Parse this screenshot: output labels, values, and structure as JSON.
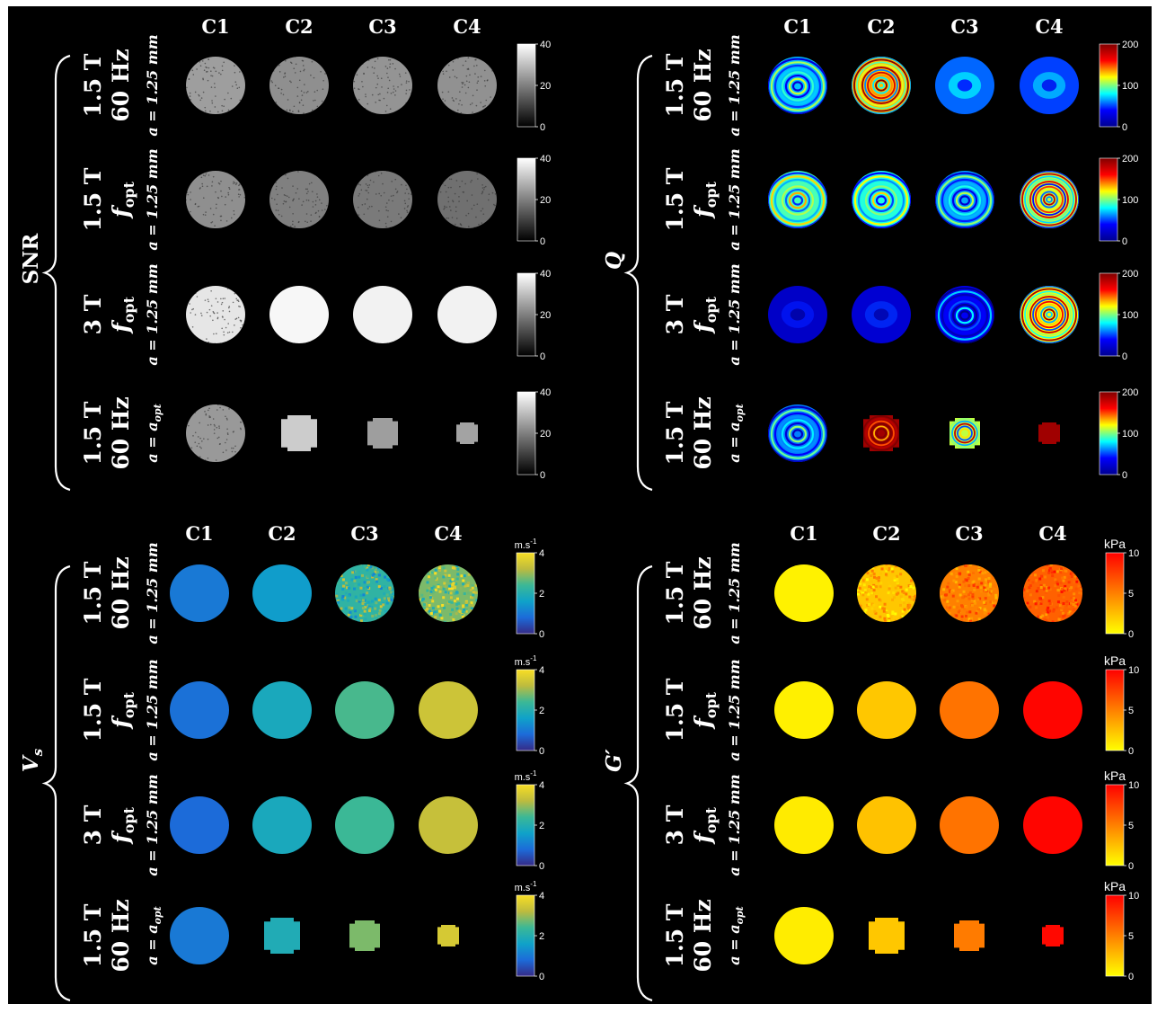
{
  "colormaps": {
    "gray": [
      "#000000",
      "#ffffff"
    ],
    "jet": [
      "#00008f",
      "#0000ff",
      "#00ffff",
      "#ffff00",
      "#ff0000",
      "#800000"
    ],
    "parula": [
      "#352a87",
      "#1c6bd9",
      "#0fa2c9",
      "#3bb896",
      "#bdbb3e",
      "#f8de24"
    ],
    "autumn_rev": [
      "#ffff00",
      "#ff8000",
      "#ff0000"
    ]
  },
  "panels": [
    {
      "id": "snr",
      "title": "SNR",
      "columns": [
        "C1",
        "C2",
        "C3",
        "C4"
      ],
      "rows": [
        {
          "field": "1.5 T",
          "freq": "60 Hz",
          "res": "a = 1.25 mm"
        },
        {
          "field": "1.5 T",
          "freq": "f",
          "freq_sub": "opt",
          "res": "a = 1.25 mm"
        },
        {
          "field": "3 T",
          "freq": "f",
          "freq_sub": "opt",
          "res": "a = 1.25 mm"
        },
        {
          "field": "1.5 T",
          "freq": "60 Hz",
          "res": "a = a",
          "res_sub": "opt"
        }
      ],
      "colorbar": {
        "map": "gray",
        "unit": "",
        "ticks": [
          "40",
          "20",
          "0"
        ]
      },
      "cells": [
        [
          {
            "v": 0.62,
            "s": "large",
            "pat": "speckle"
          },
          {
            "v": 0.56,
            "s": "large",
            "pat": "speckle"
          },
          {
            "v": 0.58,
            "s": "large",
            "pat": "speckle"
          },
          {
            "v": 0.57,
            "s": "large",
            "pat": "speckle"
          }
        ],
        [
          {
            "v": 0.56,
            "s": "large",
            "pat": "speckle"
          },
          {
            "v": 0.5,
            "s": "large",
            "pat": "speckle"
          },
          {
            "v": 0.48,
            "s": "large",
            "pat": "speckle"
          },
          {
            "v": 0.44,
            "s": "large",
            "pat": "speckle"
          }
        ],
        [
          {
            "v": 0.9,
            "s": "large",
            "pat": "speckle"
          },
          {
            "v": 0.97,
            "s": "large",
            "pat": "flat"
          },
          {
            "v": 0.95,
            "s": "large",
            "pat": "flat"
          },
          {
            "v": 0.95,
            "s": "large",
            "pat": "flat"
          }
        ],
        [
          {
            "v": 0.6,
            "s": "large",
            "pat": "speckle"
          },
          {
            "v": 0.8,
            "s": "med",
            "pat": "flat"
          },
          {
            "v": 0.62,
            "s": "small",
            "pat": "flat"
          },
          {
            "v": 0.64,
            "s": "tiny",
            "pat": "flat"
          }
        ]
      ]
    },
    {
      "id": "q",
      "title": "Q",
      "columns": [
        "C1",
        "C2",
        "C3",
        "C4"
      ],
      "rows": [
        {
          "field": "1.5 T",
          "freq": "60 Hz",
          "res": "a = 1.25 mm"
        },
        {
          "field": "1.5 T",
          "freq": "f",
          "freq_sub": "opt",
          "res": "a = 1.25 mm"
        },
        {
          "field": "3 T",
          "freq": "f",
          "freq_sub": "opt",
          "res": "a = 1.25 mm"
        },
        {
          "field": "1.5 T",
          "freq": "60 Hz",
          "res": "a = a",
          "res_sub": "opt"
        }
      ],
      "colorbar": {
        "map": "jet",
        "unit": "",
        "ticks": [
          "200",
          "100",
          "0"
        ]
      },
      "cells": [
        [
          {
            "v": 0.35,
            "s": "large",
            "pat": "rings"
          },
          {
            "v": 0.65,
            "s": "large",
            "pat": "hot"
          },
          {
            "v": 0.28,
            "s": "large",
            "pat": "blob"
          },
          {
            "v": 0.25,
            "s": "large",
            "pat": "blob"
          }
        ],
        [
          {
            "v": 0.45,
            "s": "large",
            "pat": "rings"
          },
          {
            "v": 0.42,
            "s": "large",
            "pat": "rings"
          },
          {
            "v": 0.33,
            "s": "large",
            "pat": "rings"
          },
          {
            "v": 0.55,
            "s": "large",
            "pat": "hot"
          }
        ],
        [
          {
            "v": 0.1,
            "s": "large",
            "pat": "blob"
          },
          {
            "v": 0.12,
            "s": "large",
            "pat": "blob"
          },
          {
            "v": 0.18,
            "s": "large",
            "pat": "rings"
          },
          {
            "v": 0.6,
            "s": "large",
            "pat": "hot"
          }
        ],
        [
          {
            "v": 0.3,
            "s": "large",
            "pat": "rings"
          },
          {
            "v": 0.95,
            "s": "med",
            "pat": "hot"
          },
          {
            "v": 0.55,
            "s": "small",
            "pat": "hot"
          },
          {
            "v": 0.95,
            "s": "tiny",
            "pat": "flat"
          }
        ]
      ]
    },
    {
      "id": "vs",
      "title": "V",
      "title_sub": "s",
      "columns": [
        "C1",
        "C2",
        "C3",
        "C4"
      ],
      "rows": [
        {
          "field": "1.5 T",
          "freq": "60 Hz",
          "res": "a = 1.25 mm"
        },
        {
          "field": "1.5 T",
          "freq": "f",
          "freq_sub": "opt",
          "res": "a = 1.25 mm"
        },
        {
          "field": "3 T",
          "freq": "f",
          "freq_sub": "opt",
          "res": "a = 1.25 mm"
        },
        {
          "field": "1.5 T",
          "freq": "60 Hz",
          "res": "a = a",
          "res_sub": "opt"
        }
      ],
      "colorbar": {
        "map": "parula",
        "unit": "m.s",
        "unit_sup": "-1",
        "ticks": [
          "4",
          "2",
          "0"
        ]
      },
      "cells": [
        [
          {
            "v": 0.25,
            "s": "large",
            "pat": "flat"
          },
          {
            "v": 0.38,
            "s": "large",
            "pat": "flat"
          },
          {
            "v": 0.55,
            "s": "large",
            "pat": "noisy"
          },
          {
            "v": 0.7,
            "s": "large",
            "pat": "noisy"
          }
        ],
        [
          {
            "v": 0.22,
            "s": "large",
            "pat": "flat"
          },
          {
            "v": 0.45,
            "s": "large",
            "pat": "flat"
          },
          {
            "v": 0.62,
            "s": "large",
            "pat": "flat"
          },
          {
            "v": 0.85,
            "s": "large",
            "pat": "flat"
          }
        ],
        [
          {
            "v": 0.2,
            "s": "large",
            "pat": "flat"
          },
          {
            "v": 0.45,
            "s": "large",
            "pat": "flat"
          },
          {
            "v": 0.6,
            "s": "large",
            "pat": "flat"
          },
          {
            "v": 0.83,
            "s": "large",
            "pat": "flat"
          }
        ],
        [
          {
            "v": 0.25,
            "s": "large",
            "pat": "flat"
          },
          {
            "v": 0.48,
            "s": "med",
            "pat": "flat"
          },
          {
            "v": 0.7,
            "s": "small",
            "pat": "flat"
          },
          {
            "v": 0.88,
            "s": "tiny",
            "pat": "flat"
          }
        ]
      ]
    },
    {
      "id": "gp",
      "title": "G′",
      "columns": [
        "C1",
        "C2",
        "C3",
        "C4"
      ],
      "rows": [
        {
          "field": "1.5 T",
          "freq": "60 Hz",
          "res": "a = 1.25 mm"
        },
        {
          "field": "1.5 T",
          "freq": "f",
          "freq_sub": "opt",
          "res": "a = 1.25 mm"
        },
        {
          "field": "3 T",
          "freq": "f",
          "freq_sub": "opt",
          "res": "a = 1.25 mm"
        },
        {
          "field": "1.5 T",
          "freq": "60 Hz",
          "res": "a = a",
          "res_sub": "opt"
        }
      ],
      "colorbar": {
        "map": "autumn_rev",
        "unit": "kPa",
        "ticks": [
          "10",
          "5",
          "0"
        ]
      },
      "cells": [
        [
          {
            "v": 0.05,
            "s": "large",
            "pat": "flat"
          },
          {
            "v": 0.22,
            "s": "large",
            "pat": "noisy"
          },
          {
            "v": 0.5,
            "s": "large",
            "pat": "noisy"
          },
          {
            "v": 0.62,
            "s": "large",
            "pat": "noisy"
          }
        ],
        [
          {
            "v": 0.06,
            "s": "large",
            "pat": "flat"
          },
          {
            "v": 0.22,
            "s": "large",
            "pat": "flat"
          },
          {
            "v": 0.55,
            "s": "large",
            "pat": "flat"
          },
          {
            "v": 0.98,
            "s": "large",
            "pat": "flat"
          }
        ],
        [
          {
            "v": 0.08,
            "s": "large",
            "pat": "flat"
          },
          {
            "v": 0.24,
            "s": "large",
            "pat": "flat"
          },
          {
            "v": 0.55,
            "s": "large",
            "pat": "flat"
          },
          {
            "v": 0.98,
            "s": "large",
            "pat": "flat"
          }
        ],
        [
          {
            "v": 0.07,
            "s": "large",
            "pat": "flat"
          },
          {
            "v": 0.22,
            "s": "med",
            "pat": "flat"
          },
          {
            "v": 0.52,
            "s": "small",
            "pat": "flat"
          },
          {
            "v": 0.97,
            "s": "tiny",
            "pat": "flat"
          }
        ]
      ]
    }
  ]
}
